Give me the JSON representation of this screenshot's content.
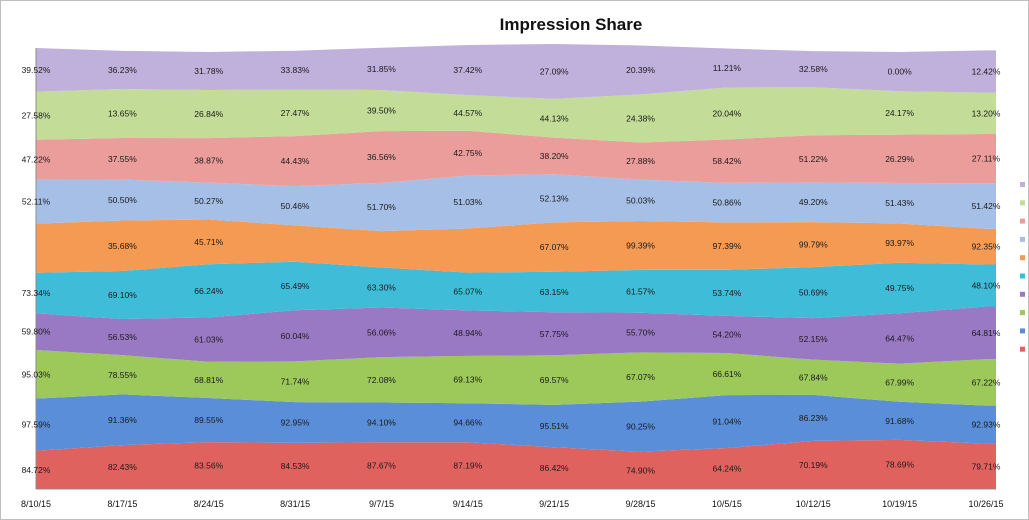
{
  "chart_data": {
    "type": "area",
    "stacked": true,
    "title": "Impression Share",
    "xlabel": "",
    "ylabel": "",
    "x": [
      "8/10/15",
      "8/17/15",
      "8/24/15",
      "8/31/15",
      "9/7/15",
      "9/14/15",
      "9/21/15",
      "9/28/15",
      "10/5/15",
      "10/12/15",
      "10/19/15",
      "10/26/15"
    ],
    "grid": false,
    "legend_position": "right",
    "series": [
      {
        "color": "#e0625f",
        "values": [
          "84.72%",
          "82.43%",
          "83.56%",
          "84.53%",
          "87.67%",
          "87.19%",
          "86.42%",
          "74.90%",
          "64.24%",
          "70.19%",
          "78.69%",
          "79.71%"
        ]
      },
      {
        "color": "#5b8ed8",
        "values": [
          "97.59%",
          "91.36%",
          "89.55%",
          "92.95%",
          "94.10%",
          "94.66%",
          "95.51%",
          "90.25%",
          "91.04%",
          "86.23%",
          "91.68%",
          "92.93%"
        ]
      },
      {
        "color": "#9dc85a",
        "values": [
          "95.03%",
          "78.55%",
          "68.81%",
          "71.74%",
          "72.08%",
          "69.13%",
          "69.57%",
          "67.07%",
          "66.61%",
          "67.84%",
          "67.99%",
          "67.22%"
        ]
      },
      {
        "color": "#9a79c4",
        "values": [
          "59.80%",
          "56.53%",
          "61.03%",
          "60.04%",
          "56.06%",
          "48.94%",
          "57.75%",
          "55.70%",
          "54.20%",
          "52.15%",
          "64.47%",
          "64.81%"
        ]
      },
      {
        "color": "#3fbcd8",
        "values": [
          "73.34%",
          "69.10%",
          "66.24%",
          "65.49%",
          "63.30%",
          "65.07%",
          "63.15%",
          "61.57%",
          "53.74%",
          "50.69%",
          "49.75%",
          "48.10%"
        ]
      },
      {
        "color": "#f59a52",
        "values": [
          "",
          "35.68%",
          "45.71%",
          "",
          "",
          "",
          "67.07%",
          "99.39%",
          "97.39%",
          "99.79%",
          "93.97%",
          "92.35%"
        ]
      },
      {
        "color": "#a6bfe6",
        "values": [
          "52.11%",
          "50.50%",
          "50.27%",
          "50.46%",
          "51.70%",
          "51.03%",
          "52.13%",
          "50.03%",
          "50.86%",
          "49.20%",
          "51.43%",
          "51.42%"
        ]
      },
      {
        "color": "#eb9d9b",
        "values": [
          "47.22%",
          "37.55%",
          "38.87%",
          "44.43%",
          "36.56%",
          "42.75%",
          "38.20%",
          "27.88%",
          "58.42%",
          "51.22%",
          "26.29%",
          "27.11%"
        ]
      },
      {
        "color": "#c3dc97",
        "values": [
          "27.58%",
          "13.65%",
          "26.84%",
          "27.47%",
          "39.50%",
          "44.57%",
          "44.13%",
          "24.38%",
          "20.04%",
          "",
          "24.17%",
          "13.20%"
        ]
      },
      {
        "color": "#c0b1dc",
        "values": [
          "39.52%",
          "36.23%",
          "31.78%",
          "33.83%",
          "31.85%",
          "37.42%",
          "27.09%",
          "20.39%",
          "11.21%",
          "32.58%",
          "0.00%",
          "12.42%"
        ]
      }
    ]
  }
}
